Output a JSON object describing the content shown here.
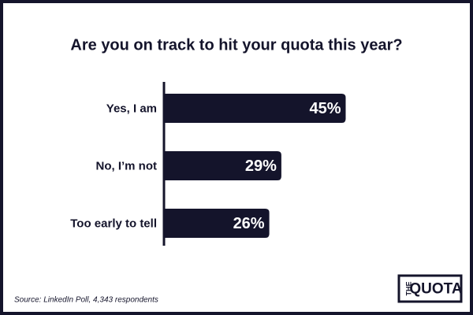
{
  "chart_data": {
    "type": "bar",
    "orientation": "horizontal",
    "title": "Are you on track to hit your quota this year?",
    "categories": [
      "Yes, I am",
      "No, I’m not",
      "Too early to tell"
    ],
    "values": [
      45,
      29,
      26
    ],
    "value_labels": [
      "45%",
      "29%",
      "26%"
    ],
    "color": "#14142b",
    "source": "Source: LinkedIn Poll, 4,343 respondents"
  },
  "logo": {
    "small": "THE",
    "main": "QUOTA"
  }
}
